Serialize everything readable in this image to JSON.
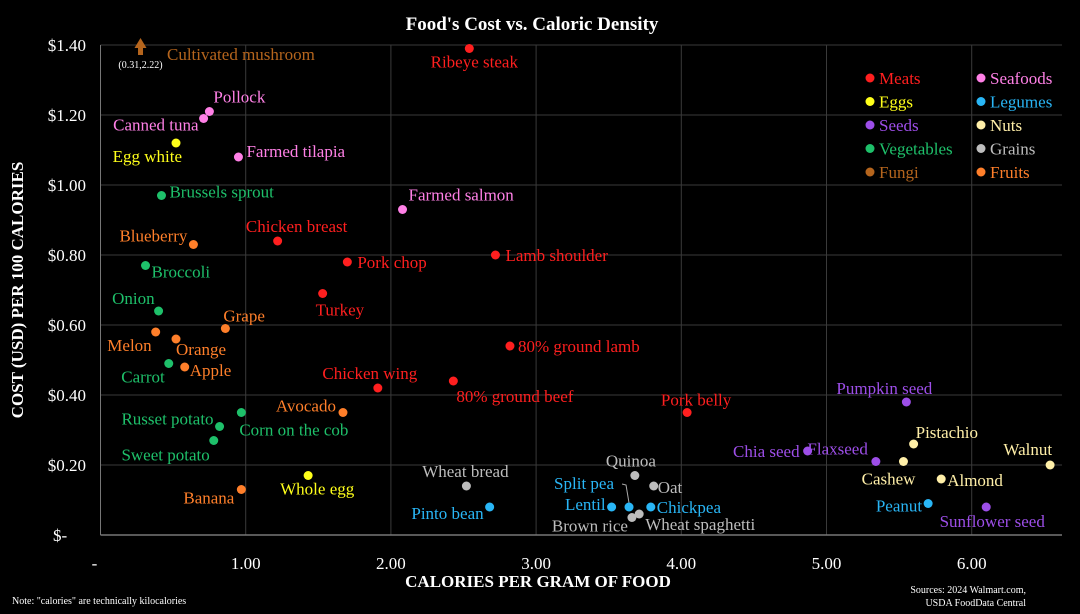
{
  "chart_data": {
    "type": "scatter",
    "title": "Food's Cost vs. Caloric Density",
    "xlabel": "CALORIES PER GRAM OF FOOD",
    "ylabel": "COST (USD) PER 100 CALORIES",
    "xlim": [
      0,
      6.55
    ],
    "ylim": [
      0,
      1.4
    ],
    "x_ticks": [
      "-",
      "1.00",
      "2.00",
      "3.00",
      "4.00",
      "5.00",
      "6.00"
    ],
    "y_ticks": [
      "$-",
      "$0.20",
      "$0.40",
      "$0.60",
      "$0.80",
      "$1.00",
      "$1.20",
      "$1.40"
    ],
    "grid": true,
    "legend_position": "top-right",
    "note": "Note: \"calories\" are technically kilocalories",
    "sources": [
      "Sources: 2024 Walmart.com,",
      "USDA FoodData Central"
    ],
    "categories": [
      {
        "name": "Meats",
        "color": "#ff1f1f"
      },
      {
        "name": "Seafoods",
        "color": "#ff80e6"
      },
      {
        "name": "Eggs",
        "color": "#ffff1a"
      },
      {
        "name": "Legumes",
        "color": "#29b6f6"
      },
      {
        "name": "Seeds",
        "color": "#9d4ee8"
      },
      {
        "name": "Nuts",
        "color": "#ffefa8"
      },
      {
        "name": "Vegetables",
        "color": "#1ec06a"
      },
      {
        "name": "Grains",
        "color": "#bdbdbd"
      },
      {
        "name": "Fungi",
        "color": "#b5651d"
      },
      {
        "name": "Fruits",
        "color": "#ff7f2a"
      }
    ],
    "offchart": {
      "label": "Cultivated mushroom",
      "category": "Fungi",
      "x": 0.31,
      "y": 2.22,
      "coord_label": "(0.31,2.22)"
    },
    "points": [
      {
        "label": "Ribeye steak",
        "category": "Meats",
        "x": 2.54,
        "y": 1.39
      },
      {
        "label": "Chicken breast",
        "category": "Meats",
        "x": 1.22,
        "y": 0.84
      },
      {
        "label": "Pork chop",
        "category": "Meats",
        "x": 1.7,
        "y": 0.78
      },
      {
        "label": "Lamb shoulder",
        "category": "Meats",
        "x": 2.72,
        "y": 0.8
      },
      {
        "label": "Turkey",
        "category": "Meats",
        "x": 1.53,
        "y": 0.69
      },
      {
        "label": "80% ground lamb",
        "category": "Meats",
        "x": 2.82,
        "y": 0.54
      },
      {
        "label": "Chicken wing",
        "category": "Meats",
        "x": 1.91,
        "y": 0.42
      },
      {
        "label": "80% ground beef",
        "category": "Meats",
        "x": 2.43,
        "y": 0.44
      },
      {
        "label": "Pork belly",
        "category": "Meats",
        "x": 4.04,
        "y": 0.35
      },
      {
        "label": "Pollock",
        "category": "Seafoods",
        "x": 0.75,
        "y": 1.21
      },
      {
        "label": "Canned tuna",
        "category": "Seafoods",
        "x": 0.71,
        "y": 1.19
      },
      {
        "label": "Farmed tilapia",
        "category": "Seafoods",
        "x": 0.95,
        "y": 1.08
      },
      {
        "label": "Farmed salmon",
        "category": "Seafoods",
        "x": 2.08,
        "y": 0.93
      },
      {
        "label": "Egg white",
        "category": "Eggs",
        "x": 0.52,
        "y": 1.12
      },
      {
        "label": "Whole egg",
        "category": "Eggs",
        "x": 1.43,
        "y": 0.17
      },
      {
        "label": "Brussels sprout",
        "category": "Vegetables",
        "x": 0.42,
        "y": 0.97
      },
      {
        "label": "Broccoli",
        "category": "Vegetables",
        "x": 0.31,
        "y": 0.77
      },
      {
        "label": "Onion",
        "category": "Vegetables",
        "x": 0.4,
        "y": 0.64
      },
      {
        "label": "Carrot",
        "category": "Vegetables",
        "x": 0.47,
        "y": 0.49
      },
      {
        "label": "Russet potato",
        "category": "Vegetables",
        "x": 0.82,
        "y": 0.31
      },
      {
        "label": "Corn on the cob",
        "category": "Vegetables",
        "x": 0.97,
        "y": 0.35
      },
      {
        "label": "Sweet potato",
        "category": "Vegetables",
        "x": 0.78,
        "y": 0.27
      },
      {
        "label": "Blueberry",
        "category": "Fruits",
        "x": 0.64,
        "y": 0.83
      },
      {
        "label": "Grape",
        "category": "Fruits",
        "x": 0.86,
        "y": 0.59
      },
      {
        "label": "Melon",
        "category": "Fruits",
        "x": 0.38,
        "y": 0.58
      },
      {
        "label": "Orange",
        "category": "Fruits",
        "x": 0.52,
        "y": 0.56
      },
      {
        "label": "Apple",
        "category": "Fruits",
        "x": 0.58,
        "y": 0.48
      },
      {
        "label": "Avocado",
        "category": "Fruits",
        "x": 1.67,
        "y": 0.35
      },
      {
        "label": "Banana",
        "category": "Fruits",
        "x": 0.97,
        "y": 0.13
      },
      {
        "label": "Pumpkin seed",
        "category": "Seeds",
        "x": 5.55,
        "y": 0.38
      },
      {
        "label": "Chia seed",
        "category": "Seeds",
        "x": 4.87,
        "y": 0.24
      },
      {
        "label": "Flaxseed",
        "category": "Seeds",
        "x": 5.34,
        "y": 0.21
      },
      {
        "label": "Sunflower seed",
        "category": "Seeds",
        "x": 6.1,
        "y": 0.08
      },
      {
        "label": "Pistachio",
        "category": "Nuts",
        "x": 5.6,
        "y": 0.26
      },
      {
        "label": "Cashew",
        "category": "Nuts",
        "x": 5.53,
        "y": 0.21
      },
      {
        "label": "Almond",
        "category": "Nuts",
        "x": 5.79,
        "y": 0.16
      },
      {
        "label": "Walnut",
        "category": "Nuts",
        "x": 6.54,
        "y": 0.2
      },
      {
        "label": "Peanut",
        "category": "Legumes",
        "x": 5.7,
        "y": 0.09
      },
      {
        "label": "Pinto bean",
        "category": "Legumes",
        "x": 2.68,
        "y": 0.08
      },
      {
        "label": "Split pea",
        "category": "Legumes",
        "x": 3.64,
        "y": 0.08
      },
      {
        "label": "Lentil",
        "category": "Legumes",
        "x": 3.52,
        "y": 0.08
      },
      {
        "label": "Chickpea",
        "category": "Legumes",
        "x": 3.79,
        "y": 0.08
      },
      {
        "label": "Wheat bread",
        "category": "Grains",
        "x": 2.52,
        "y": 0.14
      },
      {
        "label": "Quinoa",
        "category": "Grains",
        "x": 3.68,
        "y": 0.17
      },
      {
        "label": "Oat",
        "category": "Grains",
        "x": 3.81,
        "y": 0.14
      },
      {
        "label": "Brown rice",
        "category": "Grains",
        "x": 3.66,
        "y": 0.05
      },
      {
        "label": "Wheat spaghetti",
        "category": "Grains",
        "x": 3.71,
        "y": 0.06
      }
    ]
  }
}
